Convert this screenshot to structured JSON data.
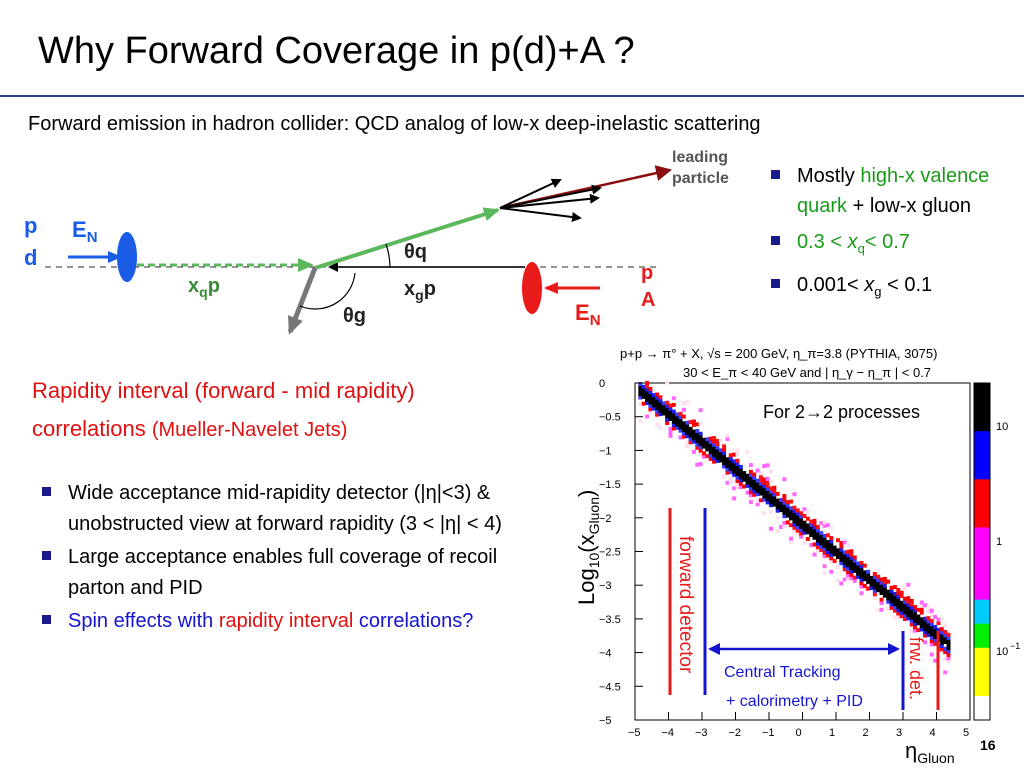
{
  "title": "Why Forward Coverage in p(d)+A ?",
  "subtitle": "Forward emission in hadron collider: QCD analog of low-x deep-inelastic scattering",
  "diagram": {
    "p_left": "p",
    "d_left": "d",
    "EN_left": "E",
    "EN_sub": "N",
    "xqp": "x",
    "xqp_sub": "q",
    "xqp_end": "p",
    "xgp": "x",
    "xgp_sub": "g",
    "xgp_end": "p",
    "theta_q": "θq",
    "theta_g": "θg",
    "p_right": "p",
    "A_right": "A",
    "EN_right": "E",
    "leading_1": "leading",
    "leading_2": "particle",
    "colors": {
      "blue": "#1a5ce6",
      "red": "#e81a1a",
      "green": "#5cb85c",
      "dark_red": "#8b0e0e"
    }
  },
  "right_bullets": {
    "b1_pre": "Mostly ",
    "b1_green": "high-x valence quark",
    "b1_post": " + low-x gluon",
    "b2_a": "0.3 < ",
    "b2_x": "x",
    "b2_sub": "q",
    "b2_b": "<  0.7",
    "b3_a": "0.001< ",
    "b3_x": "x",
    "b3_sub": "g",
    "b3_b": " < 0.1"
  },
  "rapidity_heading": {
    "line1": "Rapidity interval (forward - mid rapidity)",
    "line2_a": "correlations ",
    "line2_b": "(Mueller-Navelet Jets)"
  },
  "left_bullets": [
    {
      "text": "Wide acceptance mid-rapidity detector (|η|<3) & unobstructed view at forward rapidity (3 < |η| < 4)"
    },
    {
      "text": "Large acceptance enables full coverage of recoil parton and PID"
    },
    {
      "text_blue": "Spin effects with ",
      "text_red": "rapidity interval",
      "text_blue2": " correlations?"
    }
  ],
  "chart_data": {
    "type": "heatmap",
    "title_line1": "p+p → π° + X, √s = 200 GeV, η_π=3.8 (PYTHIA, 3075)",
    "title_line2": "30 < E_π < 40 GeV and | η_γ − η_π | < 0.7",
    "xlabel": "ηGluon",
    "ylabel": "Log10(xGluon)",
    "xlim": [
      -5,
      5
    ],
    "ylim": [
      -5,
      0
    ],
    "x_ticks": [
      "−5",
      "−4",
      "−3",
      "−2",
      "−1",
      "0",
      "1",
      "2",
      "3",
      "4",
      "5"
    ],
    "y_ticks": [
      "0",
      "−0.5",
      "−1",
      "−1.5",
      "−2",
      "−2.5",
      "−3",
      "−3.5",
      "−4",
      "−4.5",
      "−5"
    ],
    "trend": {
      "x_start": -4.5,
      "y_start": -0.3,
      "x_end": 3.8,
      "y_end": -3.7
    },
    "colorbar_labels": [
      "10",
      "1",
      "10"
    ],
    "colorbar_exp": "−1",
    "annotations": {
      "processes": "For 2→2 processes",
      "forward_detector": "forward detector",
      "central_1": "Central Tracking",
      "central_2": "+ calorimetry + PID",
      "frw_det": "frw. det."
    }
  },
  "slide_number": "16"
}
